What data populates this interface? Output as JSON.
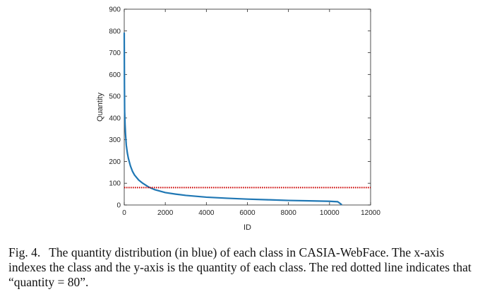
{
  "chart_data": {
    "type": "line",
    "xlabel": "ID",
    "ylabel": "Quantity",
    "xlim": [
      0,
      12000
    ],
    "ylim": [
      0,
      900
    ],
    "xticks": [
      0,
      2000,
      4000,
      6000,
      8000,
      10000,
      12000
    ],
    "yticks": [
      0,
      100,
      200,
      300,
      400,
      500,
      600,
      700,
      800,
      900
    ],
    "grid": false,
    "series": [
      {
        "color": "#1f77b4",
        "x": [
          0,
          5,
          10,
          20,
          40,
          60,
          100,
          150,
          200,
          300,
          400,
          500,
          700,
          900,
          1200,
          1500,
          2000,
          2500,
          3000,
          4000,
          5000,
          6000,
          7000,
          8000,
          9000,
          10000,
          10400,
          10575
        ],
        "values": [
          790,
          680,
          560,
          430,
          370,
          330,
          275,
          240,
          215,
          180,
          155,
          138,
          115,
          100,
          82,
          70,
          57,
          50,
          44,
          36,
          31,
          27,
          24,
          21,
          19,
          17,
          15,
          3
        ]
      }
    ],
    "reference_lines": [
      {
        "y": 80,
        "color": "#cc0000",
        "style": "dotted"
      }
    ]
  },
  "caption": {
    "label": "Fig. 4.",
    "text": "The quantity distribution (in blue) of each class in CASIA-WebFace. The x-axis indexes the class and the y-axis is the quantity of each class. The red dotted line indicates that “quantity = 80”."
  }
}
